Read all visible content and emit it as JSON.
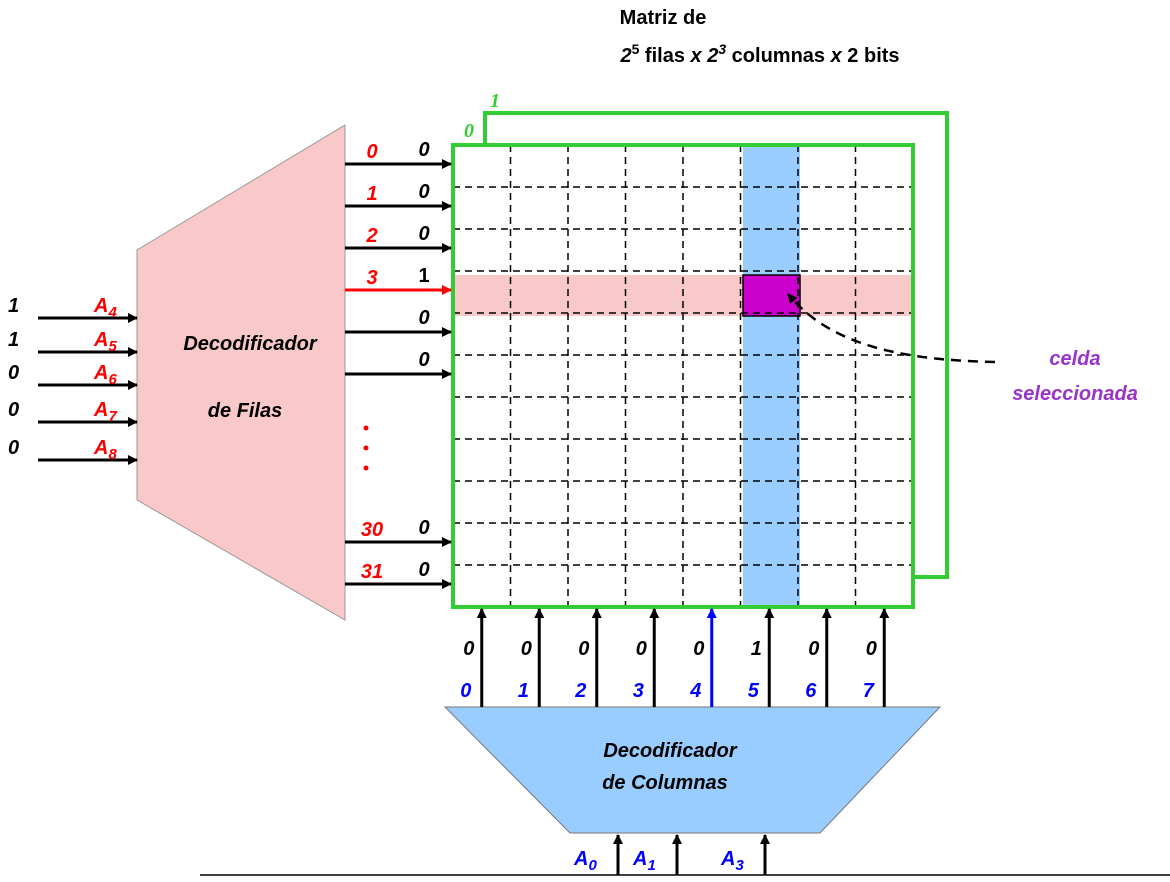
{
  "title": {
    "line1": "Matriz de",
    "line2": [
      "2",
      "5",
      " filas ",
      "x",
      " 2",
      "3",
      " columnas ",
      "x",
      " 2 bits"
    ]
  },
  "planes": [
    "0",
    "1"
  ],
  "row_decoder": {
    "label": [
      "Decodificador",
      "de Filas"
    ],
    "inputs": [
      {
        "value": "1",
        "name": "A",
        "sub": "4"
      },
      {
        "value": "1",
        "name": "A",
        "sub": "5"
      },
      {
        "value": "0",
        "name": "A",
        "sub": "6"
      },
      {
        "value": "0",
        "name": "A",
        "sub": "7"
      },
      {
        "value": "0",
        "name": "A",
        "sub": "8"
      }
    ],
    "outputs": [
      {
        "index": "0",
        "value": "0"
      },
      {
        "index": "1",
        "value": "0"
      },
      {
        "index": "2",
        "value": "0"
      },
      {
        "index": "3",
        "value": "1"
      },
      {
        "value": "0"
      },
      {
        "value": "0"
      },
      {
        "index": "30",
        "value": "0"
      },
      {
        "index": "31",
        "value": "0"
      }
    ]
  },
  "column_decoder": {
    "label": [
      "Decodificador",
      "de Columnas"
    ],
    "outputs": [
      {
        "index": "0",
        "value": "0"
      },
      {
        "index": "1",
        "value": "0"
      },
      {
        "index": "2",
        "value": "0"
      },
      {
        "index": "3",
        "value": "0"
      },
      {
        "index": "4",
        "value": "0"
      },
      {
        "index": "5",
        "value": "1"
      },
      {
        "index": "6",
        "value": "0"
      },
      {
        "index": "7",
        "value": "0"
      }
    ],
    "inputs": [
      {
        "name": "A",
        "sub": "0"
      },
      {
        "name": "A",
        "sub": "1"
      },
      {
        "name": "A",
        "sub": "3"
      }
    ]
  },
  "annotation": [
    "celda",
    "seleccionada"
  ]
}
